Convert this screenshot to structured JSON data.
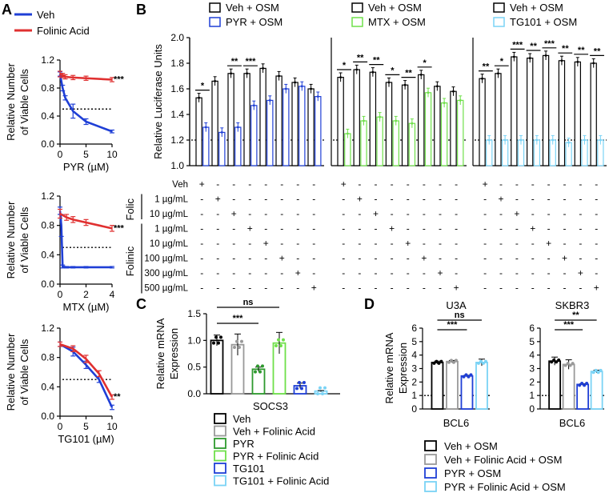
{
  "panels": {
    "A": "A",
    "B": "B",
    "C": "C",
    "D": "D"
  },
  "colors": {
    "veh": "#1f3fd6",
    "folinic": "#e03030",
    "gray": "#999999",
    "green_dark": "#2e9a2e",
    "green_light": "#6fe04a",
    "blue_dark": "#1f3fd6",
    "blue_light": "#7ad3f5"
  },
  "chart_data": [
    {
      "id": "A1",
      "type": "line",
      "legend": [
        "Veh",
        "Folinic Acid"
      ],
      "xlabel": "PYR (µM)",
      "ylabel": [
        "Relative Number",
        "of Viable Cells"
      ],
      "xlim": [
        0,
        10
      ],
      "ylim": [
        0,
        1.2
      ],
      "xticks": [
        "0",
        "5",
        "10"
      ],
      "yticks": [
        "0.0",
        "0.4",
        "0.8",
        "1.2"
      ],
      "ref_y": 0.5,
      "sig": "***",
      "series": [
        {
          "name": "Veh",
          "x": [
            0,
            0.5,
            1,
            2.5,
            5,
            10
          ],
          "y": [
            1.0,
            0.8,
            0.66,
            0.47,
            0.32,
            0.18
          ],
          "err": [
            0.03,
            0.04,
            0.03,
            0.1,
            0.04,
            0.02
          ]
        },
        {
          "name": "Folinic Acid",
          "x": [
            0,
            0.5,
            1,
            2.5,
            5,
            10
          ],
          "y": [
            1.0,
            0.98,
            0.96,
            0.95,
            0.94,
            0.92
          ],
          "err": [
            0.04,
            0.03,
            0.03,
            0.03,
            0.03,
            0.03
          ]
        }
      ]
    },
    {
      "id": "A2",
      "type": "line",
      "xlabel": "MTX (µM)",
      "ylabel": [
        "Relative Number",
        "of Viable Cells"
      ],
      "xlim": [
        0,
        4
      ],
      "ylim": [
        0,
        1.2
      ],
      "xticks": [
        "0",
        "2",
        "4"
      ],
      "yticks": [
        "0.0",
        "0.4",
        "0.8",
        "1.2"
      ],
      "ref_y": 0.5,
      "sig": "***",
      "series": [
        {
          "name": "Veh",
          "x": [
            0,
            0.1,
            0.2,
            0.5,
            1,
            2,
            4
          ],
          "y": [
            1.0,
            0.8,
            0.24,
            0.23,
            0.23,
            0.23,
            0.23
          ],
          "err": [
            0.05,
            0.15,
            0.02,
            0.01,
            0.01,
            0.01,
            0.01
          ]
        },
        {
          "name": "Folinic Acid",
          "x": [
            0,
            0.5,
            1,
            2,
            4
          ],
          "y": [
            0.96,
            0.91,
            0.88,
            0.84,
            0.76
          ],
          "err": [
            0.06,
            0.04,
            0.04,
            0.04,
            0.04
          ]
        }
      ]
    },
    {
      "id": "A3",
      "type": "line",
      "xlabel": "TG101 (µM)",
      "ylabel": [
        "Relative Number",
        "of Viable Cells"
      ],
      "xlim": [
        0,
        10
      ],
      "ylim": [
        0,
        1.2
      ],
      "xticks": [
        "0",
        "5",
        "10"
      ],
      "yticks": [
        "0.0",
        "0.4",
        "0.8",
        "1.2"
      ],
      "ref_y": 0.5,
      "sig": "**",
      "series": [
        {
          "name": "Veh",
          "x": [
            0,
            2.5,
            5,
            7.5,
            10
          ],
          "y": [
            0.98,
            0.88,
            0.7,
            0.5,
            0.12
          ],
          "err": [
            0.03,
            0.06,
            0.05,
            0.04,
            0.03
          ]
        },
        {
          "name": "Folinic Acid",
          "x": [
            0,
            2.5,
            5,
            7.5,
            10
          ],
          "y": [
            0.98,
            0.92,
            0.78,
            0.58,
            0.26
          ],
          "err": [
            0.03,
            0.04,
            0.05,
            0.04,
            0.03
          ]
        }
      ]
    },
    {
      "id": "B",
      "type": "bar",
      "ylabel": "Relative Luciferase Units",
      "ylim": [
        1.0,
        2.0
      ],
      "yticks": [
        "1.0",
        "1.2",
        "1.4",
        "1.6",
        "1.8",
        "2.0"
      ],
      "categories": [
        "Veh",
        "Folic 1 µg/mL",
        "Folic 10 µg/mL",
        "Folinic 1 µg/mL",
        "Folinic 10 µg/mL",
        "Folinic 100 µg/mL",
        "Folinic 300 µg/mL",
        "Folinic 500 µg/mL"
      ],
      "row_labels": [
        "Veh",
        "1 µg/mL",
        "10 µg/mL",
        "1 µg/mL",
        "10 µg/mL",
        "100 µg/mL",
        "300 µg/mL",
        "500 µg/mL"
      ],
      "group_labels": [
        "Folic",
        "Folinic"
      ],
      "matrix_symbols": [
        "+",
        "-"
      ],
      "subpanels": [
        {
          "legend": [
            "Veh + OSM",
            "PYR + OSM"
          ],
          "treat_color": "#1f3fd6",
          "veh": [
            1.53,
            1.66,
            1.72,
            1.72,
            1.76,
            1.7,
            1.65,
            1.6
          ],
          "treat": [
            1.3,
            1.26,
            1.3,
            1.47,
            1.51,
            1.6,
            1.62,
            1.54
          ],
          "sig": [
            "*",
            "",
            "**",
            "***",
            "",
            "",
            "",
            ""
          ]
        },
        {
          "legend": [
            "Veh + OSM",
            "MTX + OSM"
          ],
          "treat_color": "#6fe04a",
          "veh": [
            1.69,
            1.75,
            1.73,
            1.65,
            1.63,
            1.71,
            1.62,
            1.58
          ],
          "treat": [
            1.25,
            1.35,
            1.38,
            1.35,
            1.33,
            1.57,
            1.49,
            1.51
          ],
          "sig": [
            "*",
            "**",
            "**",
            "*",
            "**",
            "*",
            "",
            ""
          ]
        },
        {
          "legend": [
            "Veh + OSM",
            "TG101 + OSM"
          ],
          "treat_color": "#7ad3f5",
          "veh": [
            1.68,
            1.72,
            1.85,
            1.84,
            1.86,
            1.82,
            1.81,
            1.8
          ],
          "treat": [
            1.2,
            1.2,
            1.2,
            1.2,
            1.2,
            1.18,
            1.2,
            1.2
          ],
          "sig": [
            "**",
            "*",
            "***",
            "**",
            "***",
            "**",
            "**",
            "**"
          ]
        }
      ],
      "ref_y": 1.2
    },
    {
      "id": "C",
      "type": "bar",
      "ylabel": [
        "Relative mRNA",
        "Expression"
      ],
      "xlabel": "SOCS3",
      "ylim": [
        0,
        1.5
      ],
      "yticks": [
        "0.0",
        "0.5",
        "1.0",
        "1.5"
      ],
      "categories": [
        "Veh",
        "Veh + Folinic Acid",
        "PYR",
        "PYR + Folinic Acid",
        "TG101",
        "TG101 + Folinic Acid"
      ],
      "values": [
        1.0,
        0.92,
        0.46,
        0.95,
        0.15,
        0.05
      ],
      "errors": [
        0.1,
        0.2,
        0.04,
        0.2,
        0.05,
        0.01
      ],
      "colors": [
        "#000000",
        "#999999",
        "#2e9a2e",
        "#6fe04a",
        "#1f3fd6",
        "#7ad3f5"
      ],
      "brackets": [
        {
          "from": 0,
          "to": 2,
          "label": "***"
        },
        {
          "from": 0,
          "to": 3,
          "label": "ns"
        }
      ]
    },
    {
      "id": "D",
      "type": "bar",
      "ylabel": [
        "Relative mRNA",
        "Expression"
      ],
      "ylim": [
        0,
        6
      ],
      "yticks": [
        "0",
        "1",
        "2",
        "3",
        "4",
        "5",
        "6"
      ],
      "categories": [
        "Veh + OSM",
        "Veh + Folinic Acid + OSM",
        "PYR + OSM",
        "PYR + Folinic Acid + OSM"
      ],
      "colors": [
        "#000000",
        "#999999",
        "#1f3fd6",
        "#7ad3f5"
      ],
      "ref_y": 1,
      "subpanels": [
        {
          "title": "U3A",
          "xlabel": "BCL6",
          "values": [
            3.45,
            3.52,
            2.45,
            3.45
          ],
          "errors": [
            0.1,
            0.08,
            0.05,
            0.25
          ],
          "brackets": [
            {
              "from": 0,
              "to": 2,
              "label": "***"
            },
            {
              "from": 0,
              "to": 3,
              "label": "ns"
            }
          ]
        },
        {
          "title": "SKBR3",
          "xlabel": "BCL6",
          "values": [
            3.55,
            3.3,
            1.82,
            2.78
          ],
          "errors": [
            0.3,
            0.35,
            0.05,
            0.1
          ],
          "brackets": [
            {
              "from": 0,
              "to": 2,
              "label": "***"
            },
            {
              "from": 0,
              "to": 3,
              "label": "**"
            }
          ]
        }
      ]
    }
  ]
}
